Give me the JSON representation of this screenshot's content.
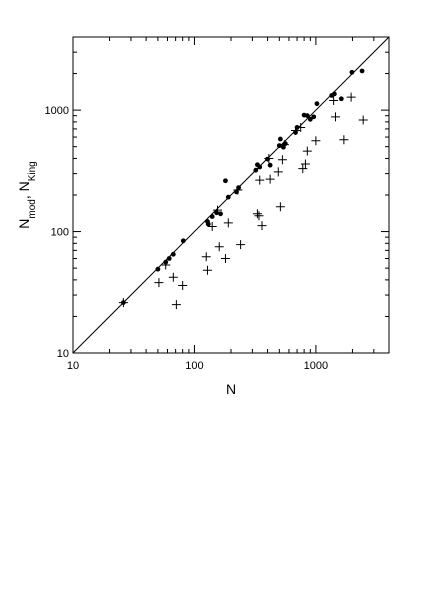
{
  "chart_data": {
    "type": "scatter",
    "title": "",
    "xlabel": "N",
    "ylabel_parts": [
      {
        "text": "N",
        "sub": "mod"
      },
      {
        "text": ", N",
        "sub": "King"
      }
    ],
    "xscale": "log",
    "yscale": "log",
    "xlim": [
      10,
      4000
    ],
    "ylim": [
      10,
      4000
    ],
    "x_ticks": [
      "10",
      "100",
      "1000"
    ],
    "y_ticks": [
      "10",
      "100",
      "1000"
    ],
    "grid": false,
    "legend": "none",
    "reference_line": {
      "x": [
        10,
        4000
      ],
      "y": [
        10,
        4000
      ]
    },
    "series": [
      {
        "marker": "dot",
        "color": "#000000",
        "points": [
          [
            26,
            26
          ],
          [
            50,
            49
          ],
          [
            58,
            56
          ],
          [
            62,
            60
          ],
          [
            67,
            65
          ],
          [
            81,
            84
          ],
          [
            128,
            121
          ],
          [
            130,
            115
          ],
          [
            140,
            133
          ],
          [
            152,
            143
          ],
          [
            164,
            140
          ],
          [
            180,
            262
          ],
          [
            190,
            192
          ],
          [
            222,
            212
          ],
          [
            231,
            230
          ],
          [
            320,
            320
          ],
          [
            330,
            355
          ],
          [
            345,
            340
          ],
          [
            400,
            395
          ],
          [
            420,
            352
          ],
          [
            500,
            510
          ],
          [
            510,
            578
          ],
          [
            540,
            495
          ],
          [
            560,
            530
          ],
          [
            680,
            655
          ],
          [
            700,
            720
          ],
          [
            800,
            910
          ],
          [
            850,
            900
          ],
          [
            900,
            840
          ],
          [
            960,
            880
          ],
          [
            1020,
            1130
          ],
          [
            1350,
            1320
          ],
          [
            1420,
            1360
          ],
          [
            1620,
            1240
          ],
          [
            1980,
            2050
          ],
          [
            2400,
            2100
          ]
        ]
      },
      {
        "marker": "plus",
        "color": "#000000",
        "points": [
          [
            26,
            26
          ],
          [
            51,
            38
          ],
          [
            58,
            53
          ],
          [
            67,
            42
          ],
          [
            71,
            25
          ],
          [
            80,
            36
          ],
          [
            125,
            62
          ],
          [
            128,
            48
          ],
          [
            140,
            110
          ],
          [
            155,
            150
          ],
          [
            160,
            75
          ],
          [
            180,
            60
          ],
          [
            190,
            118
          ],
          [
            228,
            220
          ],
          [
            240,
            78
          ],
          [
            330,
            140
          ],
          [
            340,
            135
          ],
          [
            345,
            265
          ],
          [
            360,
            112
          ],
          [
            410,
            400
          ],
          [
            420,
            270
          ],
          [
            490,
            310
          ],
          [
            510,
            160
          ],
          [
            530,
            390
          ],
          [
            550,
            520
          ],
          [
            680,
            680
          ],
          [
            750,
            720
          ],
          [
            780,
            330
          ],
          [
            820,
            360
          ],
          [
            850,
            460
          ],
          [
            1000,
            560
          ],
          [
            1400,
            1200
          ],
          [
            1450,
            880
          ],
          [
            1700,
            570
          ],
          [
            1950,
            1280
          ],
          [
            2450,
            830
          ]
        ]
      }
    ]
  }
}
